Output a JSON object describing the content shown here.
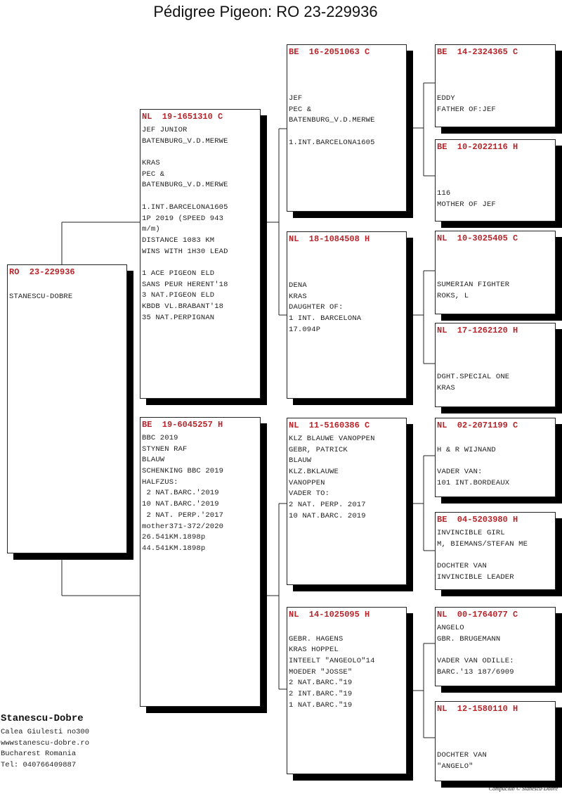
{
  "title": "Pédigree Pigeon: RO  23-229936",
  "colors": {
    "ring_number": "#b5252a",
    "shadow": "#000000"
  },
  "pigeons": {
    "root": {
      "ring": "RO  23-229936",
      "lines": [
        "",
        "STANESCU-DOBRE"
      ]
    },
    "sire": {
      "ring": "NL  19-1651310 C",
      "lines": [
        "JEF JUNIOR",
        "BATENBURG_V.D.MERWE",
        "",
        "KRAS",
        "PEC &",
        "BATENBURG_V.D.MERWE",
        "",
        "1.INT.BARCELONA1605",
        "1P 2019 (SPEED 943",
        "m/m)",
        "DISTANCE 1083 KM",
        "WINS WITH 1H30 LEAD",
        "",
        "1 ACE PIGEON ELD",
        "SANS PEUR HERENT'18",
        "3 NAT.PIGEON ELD",
        "KBDB VL.BRABANT'18",
        "35 NAT.PERPIGNAN"
      ]
    },
    "dam": {
      "ring": "BE  19-6045257 H",
      "lines": [
        "BBC 2019",
        "STYNEN RAF",
        "BLAUW",
        "SCHENKING BBC 2019",
        "HALFZUS:",
        " 2 NAT.BARC.'2019",
        "10 NAT.BARC.'2019",
        " 2 NAT. PERP.'2017",
        "mother371-372/2020",
        "26.541KM.1898p",
        "44.541KM.1898p"
      ]
    },
    "ss": {
      "ring": "BE  16-2051063 C",
      "lines": [
        "",
        "",
        "",
        "JEF",
        "PEC &",
        "BATENBURG_V.D.MERWE",
        "",
        "1.INT.BARCELONA1605"
      ]
    },
    "sd": {
      "ring": "NL  18-1084508 H",
      "lines": [
        "",
        "",
        "",
        "DENA",
        "KRAS",
        "DAUGHTER OF:",
        "1 INT. BARCELONA",
        "17.094P"
      ]
    },
    "ds": {
      "ring": "NL  11-5160386 C",
      "lines": [
        "KLZ BLAUWE VANOPPEN",
        "GEBR, PATRICK",
        "BLAUW",
        "KLZ.BKLAUWE",
        "VANOPPEN",
        "VADER TO:",
        "2 NAT. PERP. 2017",
        "10 NAT.BARC. 2019"
      ]
    },
    "dd": {
      "ring": "NL  14-1025095 H",
      "lines": [
        "",
        "GEBR. HAGENS",
        "KRAS HOPPEL",
        "INTEELT \"ANGEOLO\"14",
        "MOEDER \"JOSSE\"",
        "2 NAT.BARC.\"19",
        "2 INT.BARC.\"19",
        "1 NAT.BARC.\"19"
      ]
    },
    "sss": {
      "ring": "BE  14-2324365 C",
      "lines": [
        "",
        "",
        "",
        "EDDY",
        "FATHER OF:JEF"
      ]
    },
    "ssd": {
      "ring": "BE  10-2022116 H",
      "lines": [
        "",
        "",
        "",
        "116",
        "MOTHER OF JEF"
      ]
    },
    "sds": {
      "ring": "NL  10-3025405 C",
      "lines": [
        "",
        "",
        "",
        "SUMERIAN FIGHTER",
        "ROKS, L"
      ]
    },
    "sdd": {
      "ring": "NL  17-1262120 H",
      "lines": [
        "",
        "",
        "",
        "DGHT.SPECIAL ONE",
        "KRAS"
      ]
    },
    "dss": {
      "ring": "NL  02-2071199 C",
      "lines": [
        "",
        "H & R WIJNAND",
        "",
        "VADER VAN:",
        "101 INT.BORDEAUX"
      ]
    },
    "dsd": {
      "ring": "BE  04-5203980 H",
      "lines": [
        "INVINCIBLE GIRL",
        "M, BIEMANS/STEFAN ME",
        "",
        "DOCHTER VAN",
        "INVINCIBLE LEADER"
      ]
    },
    "dds": {
      "ring": "NL  00-1764077 C",
      "lines": [
        "ANGELO",
        "GBR. BRUGEMANN",
        "",
        "VADER VAN ODILLE:",
        "BARC.'13 187/6909"
      ]
    },
    "ddd": {
      "ring": "NL  12-1580110 H",
      "lines": [
        "",
        "",
        "",
        "DOCHTER VAN",
        "\"ANGELO\""
      ]
    }
  },
  "breeder": {
    "name": "Stanescu-Dobre",
    "address": "Calea Giulesti no300",
    "website": "wwwstanescu-dobre.ro",
    "city": "Bucharest Romania",
    "phone": "Tel: 040766409887"
  },
  "credit": "Compuclub © Stanescu-Dobre"
}
